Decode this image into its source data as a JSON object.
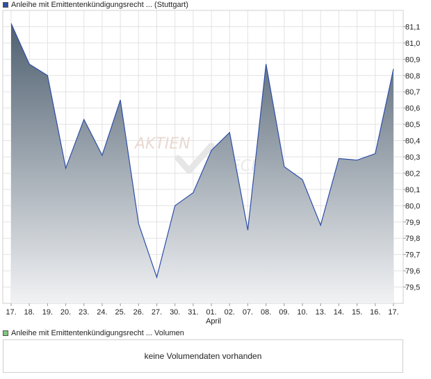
{
  "legend_price": {
    "label": "Anleihe mit Emittentenkündigungsrecht ... (Stuttgart)",
    "color": "#2d4ea8"
  },
  "legend_volume": {
    "label": "Anleihe mit Emittentenkündigungsrecht ... Volumen",
    "color": "#7ec87e"
  },
  "volume_panel": {
    "message": "keine Volumendaten vorhanden"
  },
  "watermark": {
    "word1": "AKTIEN",
    "word2": "CHECK"
  },
  "chart_data": {
    "type": "area",
    "x": [
      "17.",
      "18.",
      "19.",
      "20.",
      "23.",
      "24.",
      "25.",
      "26.",
      "27.",
      "30.",
      "31.",
      "01.",
      "02.",
      "07.",
      "08.",
      "09.",
      "10.",
      "13.",
      "14.",
      "15.",
      "16.",
      "17."
    ],
    "month_label": {
      "text": "April",
      "at_index": 11
    },
    "series": [
      {
        "values": [
          81.12,
          80.87,
          80.8,
          80.23,
          80.53,
          80.31,
          80.65,
          79.89,
          79.56,
          80.0,
          80.08,
          80.34,
          80.45,
          79.85,
          80.87,
          80.24,
          80.16,
          79.88,
          80.29,
          80.28,
          80.32,
          80.84
        ]
      }
    ],
    "y_ticks": [
      79.5,
      79.6,
      79.7,
      79.8,
      79.9,
      80.0,
      80.1,
      80.2,
      80.3,
      80.4,
      80.5,
      80.6,
      80.7,
      80.8,
      80.9,
      81.0,
      81.1
    ],
    "y_tick_labels": [
      "79,5",
      "79,6",
      "79,7",
      "79,8",
      "79,9",
      "80,0",
      "80,1",
      "80,2",
      "80,3",
      "80,4",
      "80,5",
      "80,6",
      "80,7",
      "80,8",
      "80,9",
      "81,0",
      "81,1"
    ],
    "ylim": [
      79.4,
      81.2
    ],
    "y_axis_side": "right",
    "grid": true,
    "colors": {
      "line": "#2d4ea8",
      "fill_top": "#5a6b7a",
      "fill_bottom": "#eef0f3",
      "grid": "#e2e2e2"
    }
  }
}
